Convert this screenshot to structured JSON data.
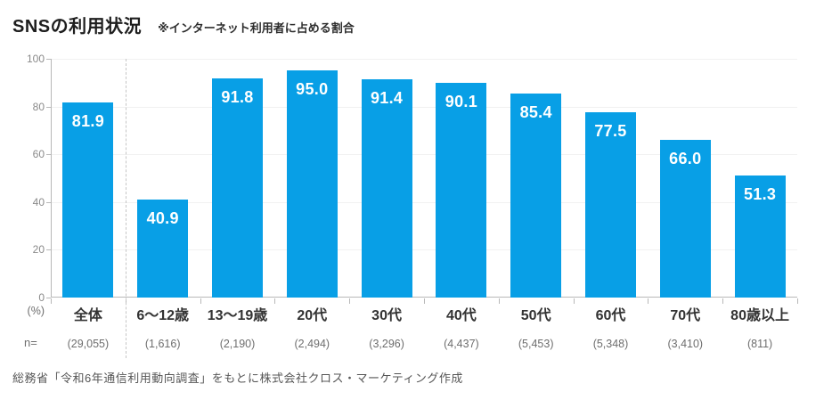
{
  "header": {
    "title": "SNSの利用状況",
    "subtitle": "※インターネット利用者に占める割合"
  },
  "chart_data": {
    "type": "bar",
    "categories": [
      "全体",
      "6〜12歳",
      "13〜19歳",
      "20代",
      "30代",
      "40代",
      "50代",
      "60代",
      "70代",
      "80歳以上"
    ],
    "values": [
      81.9,
      40.9,
      91.8,
      95.0,
      91.4,
      90.1,
      85.4,
      77.5,
      66.0,
      51.3
    ],
    "value_labels": [
      "81.9",
      "40.9",
      "91.8",
      "95.0",
      "91.4",
      "90.1",
      "85.4",
      "77.5",
      "66.0",
      "51.3"
    ],
    "n_values": [
      "(29,055)",
      "(1,616)",
      "(2,190)",
      "(2,494)",
      "(3,296)",
      "(4,437)",
      "(5,453)",
      "(5,348)",
      "(3,410)",
      "(811)"
    ],
    "n_label": "n=",
    "unit_label": "(%)",
    "y_ticks": [
      0,
      20,
      40,
      60,
      80,
      100
    ],
    "ylim": [
      0,
      100
    ],
    "grid": true,
    "legend": "none",
    "bar_color": "#089fe6",
    "value_label_color": "#ffffff",
    "separator_after_index": 0
  },
  "footer": {
    "source": "総務省「令和6年通信利用動向調査」をもとに株式会社クロス・マーケティング作成"
  }
}
